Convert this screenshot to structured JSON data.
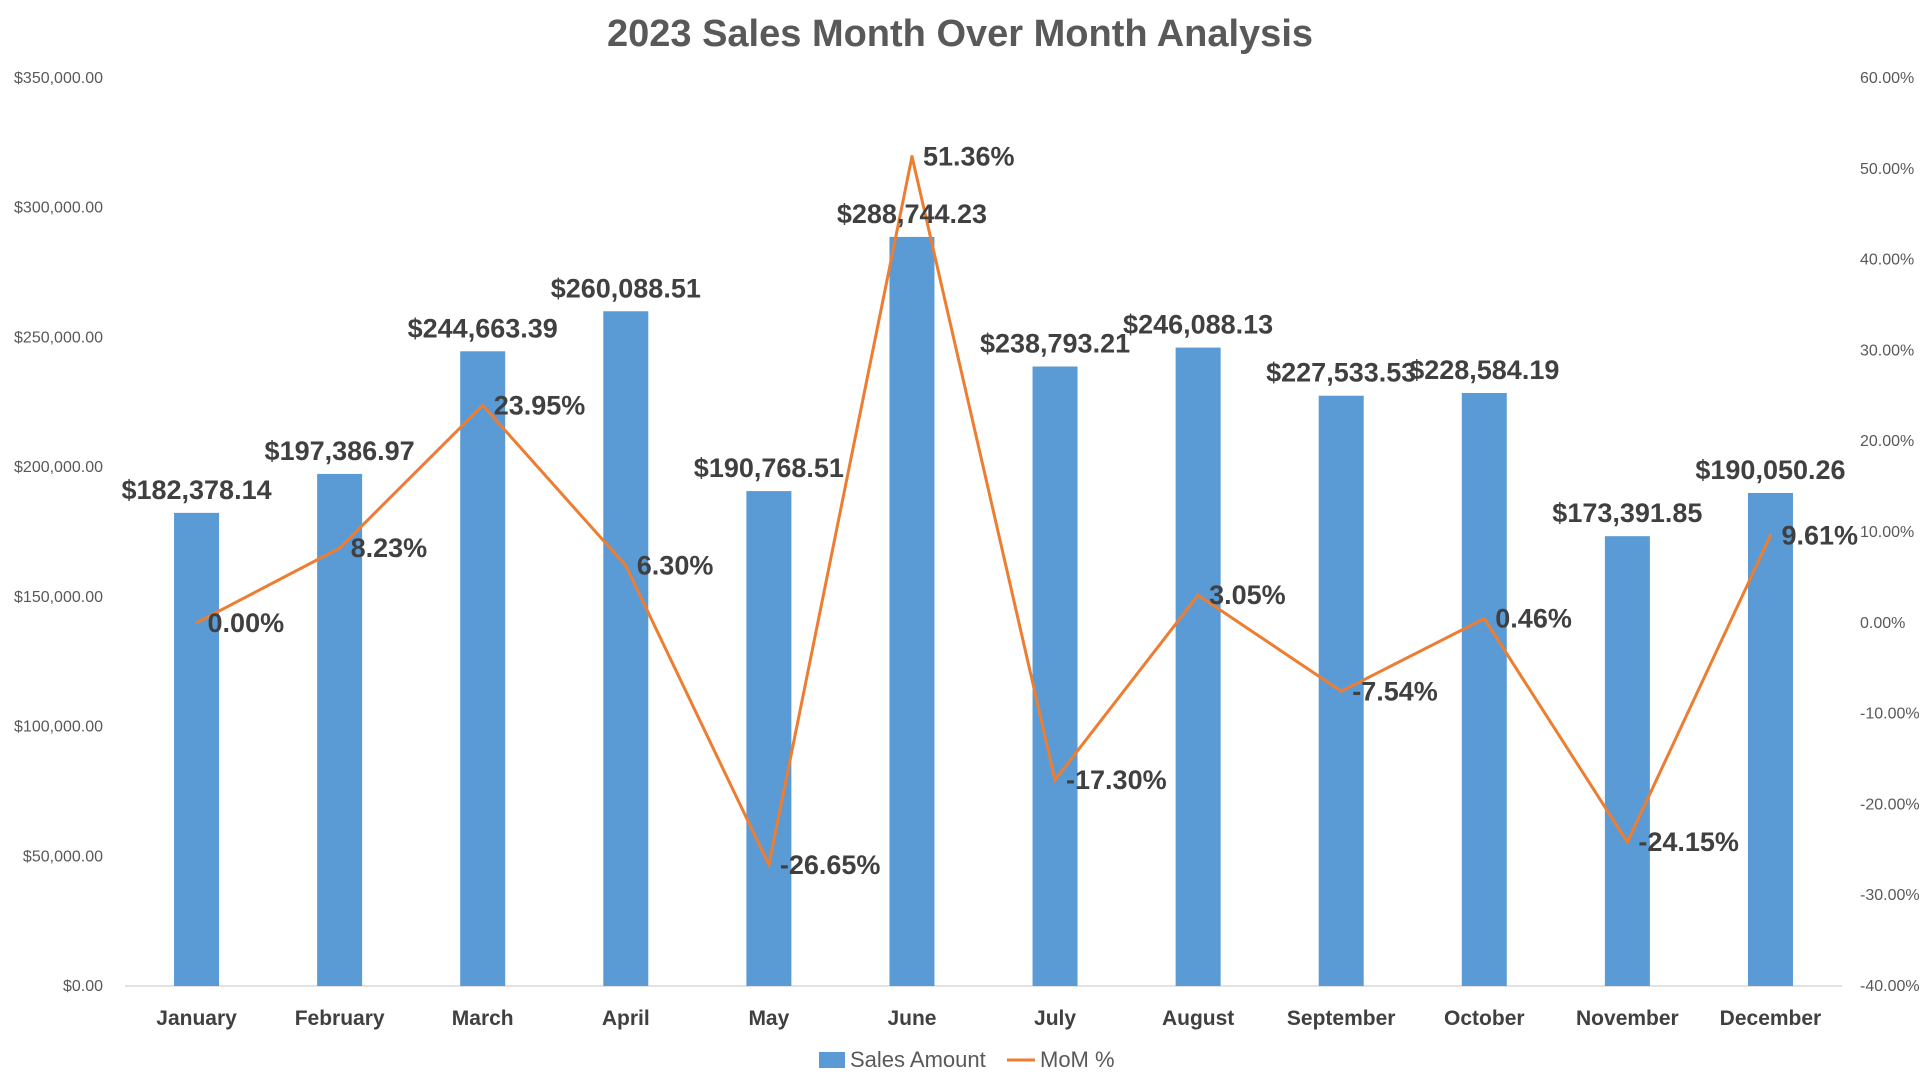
{
  "chart_data": {
    "type": "bar",
    "title": "2023 Sales Month Over Month Analysis",
    "categories": [
      "January",
      "February",
      "March",
      "April",
      "May",
      "June",
      "July",
      "August",
      "September",
      "October",
      "November",
      "December"
    ],
    "series": [
      {
        "name": "Sales Amount",
        "type": "bar",
        "axis": "left",
        "color": "#5B9BD5",
        "values": [
          182378.14,
          197386.97,
          244663.39,
          260088.51,
          190768.51,
          288744.23,
          238793.21,
          246088.13,
          227533.53,
          228584.19,
          173391.85,
          190050.26
        ],
        "labels": [
          "$182,378.14",
          "$197,386.97",
          "$244,663.39",
          "$260,088.51",
          "$190,768.51",
          "$288,744.23",
          "$238,793.21",
          "$246,088.13",
          "$227,533.53",
          "$228,584.19",
          "$173,391.85",
          "$190,050.26"
        ]
      },
      {
        "name": "MoM %",
        "type": "line",
        "axis": "right",
        "color": "#ED7D31",
        "values": [
          0.0,
          8.23,
          23.95,
          6.3,
          -26.65,
          51.36,
          -17.3,
          3.05,
          -7.54,
          0.46,
          -24.15,
          9.61
        ],
        "labels": [
          "0.00%",
          "8.23%",
          "23.95%",
          "6.30%",
          "-26.65%",
          "51.36%",
          "-17.30%",
          "3.05%",
          "-7.54%",
          "0.46%",
          "-24.15%",
          "9.61%"
        ]
      }
    ],
    "y_left": {
      "min": 0,
      "max": 350000,
      "ticks": [
        0,
        50000,
        100000,
        150000,
        200000,
        250000,
        300000,
        350000
      ],
      "tick_labels": [
        "$0.00",
        "$50,000.00",
        "$100,000.00",
        "$150,000.00",
        "$200,000.00",
        "$250,000.00",
        "$300,000.00",
        "$350,000.00"
      ]
    },
    "y_right": {
      "min": -40,
      "max": 60,
      "ticks": [
        -40,
        -30,
        -20,
        -10,
        0,
        10,
        20,
        30,
        40,
        50,
        60
      ],
      "tick_labels": [
        "-40.00%",
        "-30.00%",
        "-20.00%",
        "-10.00%",
        "0.00%",
        "10.00%",
        "20.00%",
        "30.00%",
        "40.00%",
        "50.00%",
        "60.00%"
      ]
    },
    "grid": false,
    "legend": "bottom",
    "xlabel": "",
    "ylabel": ""
  }
}
